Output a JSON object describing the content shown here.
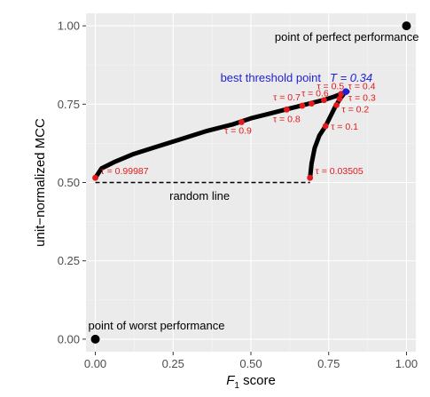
{
  "chart_data": {
    "type": "scatter",
    "xlabel": "F",
    "xlabel_sub": "1",
    "xlabel_suffix": " score",
    "ylabel": "unit−normalized MCC",
    "xlim": [
      -0.03,
      1.03
    ],
    "ylim": [
      -0.04,
      1.04
    ],
    "grid": true,
    "x_ticks": [
      0.0,
      0.25,
      0.5,
      0.75,
      1.0
    ],
    "x_tick_labels": [
      "0.00",
      "0.25",
      "0.50",
      "0.75",
      "1.00"
    ],
    "y_ticks": [
      0.0,
      0.25,
      0.5,
      0.75,
      1.0
    ],
    "y_tick_labels": [
      "0.00",
      "0.25",
      "0.50",
      "0.75",
      "1.00"
    ],
    "curve_upper": [
      [
        0.0,
        0.515
      ],
      [
        0.02,
        0.545
      ],
      [
        0.06,
        0.565
      ],
      [
        0.12,
        0.59
      ],
      [
        0.2,
        0.615
      ],
      [
        0.28,
        0.64
      ],
      [
        0.36,
        0.665
      ],
      [
        0.44,
        0.685
      ],
      [
        0.5,
        0.705
      ],
      [
        0.56,
        0.72
      ],
      [
        0.62,
        0.735
      ],
      [
        0.66,
        0.745
      ],
      [
        0.7,
        0.755
      ],
      [
        0.74,
        0.765
      ],
      [
        0.77,
        0.775
      ],
      [
        0.795,
        0.785
      ],
      [
        0.81,
        0.79
      ]
    ],
    "curve_lower": [
      [
        0.69,
        0.515
      ],
      [
        0.695,
        0.56
      ],
      [
        0.705,
        0.61
      ],
      [
        0.72,
        0.65
      ],
      [
        0.74,
        0.68
      ],
      [
        0.755,
        0.71
      ],
      [
        0.77,
        0.74
      ],
      [
        0.785,
        0.765
      ],
      [
        0.8,
        0.785
      ],
      [
        0.81,
        0.79
      ]
    ],
    "random_line": {
      "x": [
        0.0,
        0.69
      ],
      "y": 0.5,
      "label": "random line"
    },
    "thresholds": [
      {
        "label": "τ = 0.99987",
        "x": 0.0,
        "y": 0.515
      },
      {
        "label": "τ = 0.9",
        "x": 0.47,
        "y": 0.693
      },
      {
        "label": "τ = 0.8",
        "x": 0.615,
        "y": 0.733
      },
      {
        "label": "τ = 0.7",
        "x": 0.665,
        "y": 0.745
      },
      {
        "label": "τ = 0.6",
        "x": 0.695,
        "y": 0.752
      },
      {
        "label": "τ = 0.5",
        "x": 0.735,
        "y": 0.763
      },
      {
        "label": "τ = 0.4",
        "x": 0.79,
        "y": 0.783
      },
      {
        "label": "τ = 0.3",
        "x": 0.785,
        "y": 0.767
      },
      {
        "label": "τ = 0.2",
        "x": 0.775,
        "y": 0.747
      },
      {
        "label": "τ = 0.1",
        "x": 0.74,
        "y": 0.68
      },
      {
        "label": "τ = 0.03505",
        "x": 0.69,
        "y": 0.515
      }
    ],
    "best_threshold": {
      "label": "best threshold point",
      "T_label": "T = 0.34",
      "x": 0.805,
      "y": 0.79
    },
    "perfect_point": {
      "label": "point of perfect performance",
      "x": 1.0,
      "y": 1.0
    },
    "worst_point": {
      "label": "point of worst performance",
      "x": 0.0,
      "y": 0.0
    },
    "colors": {
      "panel": "#ebebeb",
      "grid_major": "#ffffff",
      "grid_minor": "#f5f5f5",
      "curve": "#000000",
      "threshold": "#e31a1c",
      "best": "#1f1fd6"
    }
  }
}
